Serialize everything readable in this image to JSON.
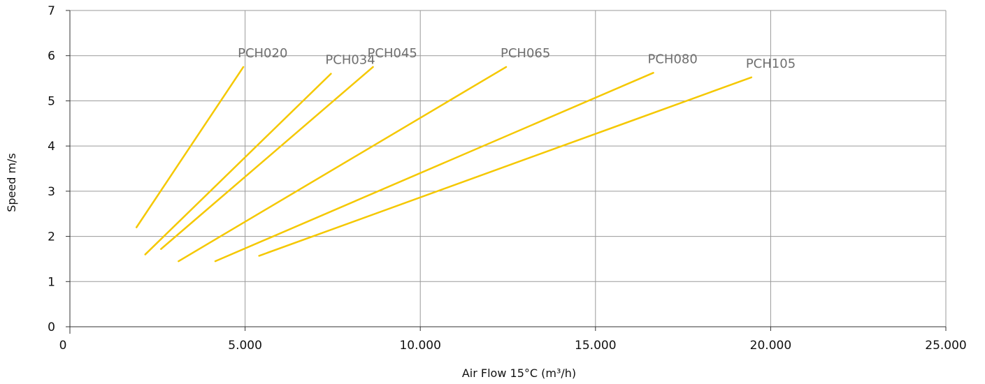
{
  "chart_data": {
    "type": "line",
    "xlabel": "Air Flow 15°C (m³/h)",
    "ylabel": "Speed m/s",
    "xlim": [
      0,
      25000
    ],
    "ylim": [
      0,
      7
    ],
    "x_ticks": [
      0,
      5000,
      10000,
      15000,
      20000,
      25000
    ],
    "x_tick_labels": [
      "0",
      "5.000",
      "10.000",
      "15.000",
      "20.000",
      "25.000"
    ],
    "y_ticks": [
      0,
      1,
      2,
      3,
      4,
      5,
      6,
      7
    ],
    "y_tick_labels": [
      "0",
      "1",
      "2",
      "3",
      "4",
      "5",
      "6",
      "7"
    ],
    "grid": true,
    "line_color": "#F5C800",
    "series": [
      {
        "name": "PCH020",
        "x": [
          1900,
          4950
        ],
        "y": [
          2.2,
          5.75
        ]
      },
      {
        "name": "PCH034",
        "x": [
          2150,
          7450
        ],
        "y": [
          1.6,
          5.6
        ]
      },
      {
        "name": "PCH045",
        "x": [
          2600,
          8650
        ],
        "y": [
          1.72,
          5.75
        ]
      },
      {
        "name": "PCH065",
        "x": [
          3100,
          12450
        ],
        "y": [
          1.45,
          5.75
        ]
      },
      {
        "name": "PCH080",
        "x": [
          4150,
          16650
        ],
        "y": [
          1.45,
          5.62
        ]
      },
      {
        "name": "PCH105",
        "x": [
          5400,
          19450
        ],
        "y": [
          1.57,
          5.52
        ]
      }
    ]
  }
}
